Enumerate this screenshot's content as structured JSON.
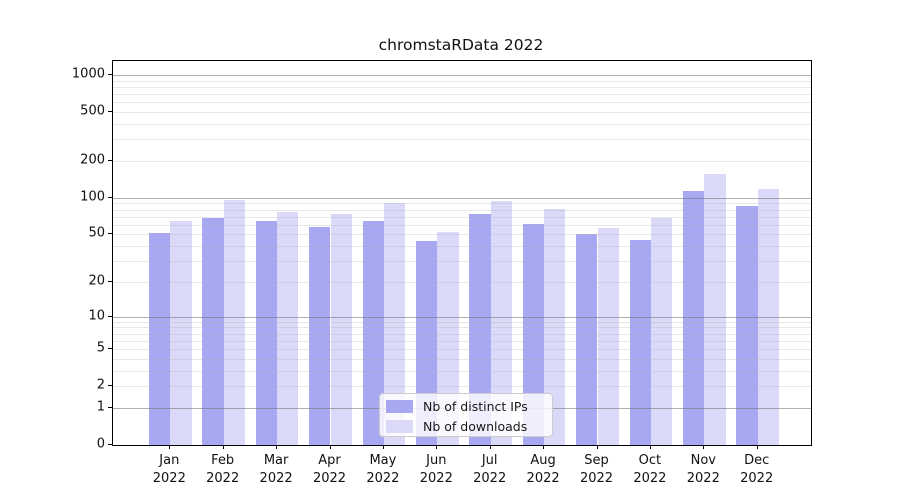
{
  "title": "chromstaRData 2022",
  "chart_data": {
    "type": "bar",
    "title": "chromstaRData 2022",
    "categories": [
      "Jan",
      "Feb",
      "Mar",
      "Apr",
      "May",
      "Jun",
      "Jul",
      "Aug",
      "Sep",
      "Oct",
      "Nov",
      "Dec"
    ],
    "category_year": "2022",
    "series": [
      {
        "name": "Nb of distinct IPs",
        "color": "#a8a8f2",
        "values": [
          51,
          68,
          65,
          58,
          65,
          44,
          73,
          61,
          50,
          45,
          114,
          86
        ]
      },
      {
        "name": "Nb of downloads",
        "color": "#dadaf8",
        "values": [
          65,
          96,
          77,
          74,
          91,
          52,
          94,
          81,
          57,
          68,
          158,
          119
        ]
      }
    ],
    "xlabel": "",
    "ylabel": "",
    "y_scale": "log10(1+x)",
    "ylim": [
      0,
      1250
    ],
    "y_ticks": [
      1000,
      500,
      200,
      100,
      50,
      20,
      10,
      5,
      2,
      1,
      0
    ],
    "y_major_grid": [
      1,
      10,
      100,
      1000
    ],
    "y_minor_grid": [
      2,
      3,
      4,
      5,
      6,
      7,
      8,
      9,
      20,
      30,
      40,
      50,
      60,
      70,
      80,
      90,
      200,
      300,
      400,
      500,
      600,
      700,
      800,
      900
    ],
    "grid": true,
    "legend_position": "lower center"
  },
  "legend": {
    "items": [
      {
        "label": "Nb of distinct IPs",
        "color": "#a8a8f2"
      },
      {
        "label": "Nb of downloads",
        "color": "#dadaf8"
      }
    ]
  }
}
